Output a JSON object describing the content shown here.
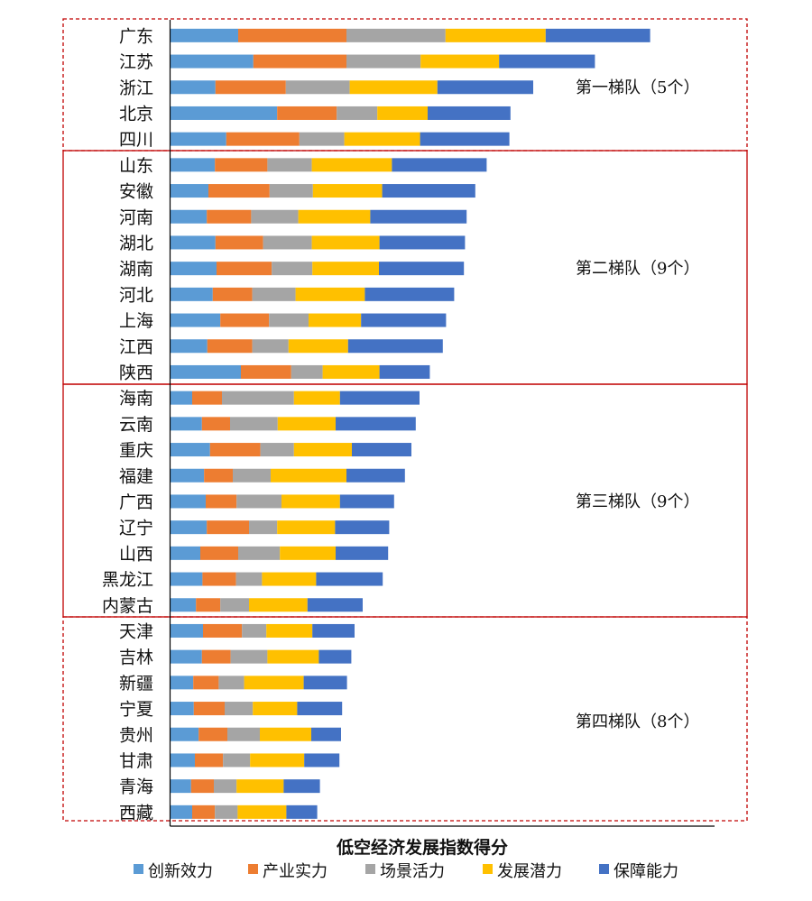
{
  "chart_data": {
    "type": "bar",
    "orientation": "horizontal",
    "stacked": true,
    "title": "",
    "xlabel": "低空经济发展指数得分",
    "ylabel": "",
    "xlim": [
      0,
      100
    ],
    "grid": false,
    "legend_position": "bottom",
    "categories": [
      "广东",
      "江苏",
      "浙江",
      "北京",
      "四川",
      "山东",
      "安徽",
      "河南",
      "湖北",
      "湖南",
      "河北",
      "上海",
      "江西",
      "陕西",
      "海南",
      "云南",
      "重庆",
      "福建",
      "广西",
      "辽宁",
      "山西",
      "黑龙江",
      "内蒙古",
      "天津",
      "吉林",
      "新疆",
      "宁夏",
      "贵州",
      "甘肃",
      "青海",
      "西藏"
    ],
    "series": [
      {
        "name": "创新效力",
        "color": "#5B9BD5",
        "values": [
          12.5,
          15.3,
          8.3,
          19.7,
          10.3,
          8.2,
          7.0,
          6.7,
          8.3,
          8.5,
          7.8,
          9.2,
          6.8,
          13.0,
          4.0,
          5.8,
          7.3,
          6.2,
          6.5,
          6.7,
          5.5,
          5.9,
          4.7,
          6.0,
          5.8,
          4.2,
          4.3,
          5.2,
          4.5,
          3.8,
          4.0
        ]
      },
      {
        "name": "产业实力",
        "color": "#ED7D31",
        "values": [
          20.0,
          17.2,
          13.0,
          11.0,
          13.5,
          9.7,
          11.3,
          8.2,
          8.8,
          10.2,
          7.3,
          9.0,
          8.3,
          9.3,
          5.5,
          5.2,
          9.3,
          5.3,
          5.7,
          7.8,
          7.0,
          6.2,
          4.5,
          7.2,
          5.3,
          4.7,
          5.7,
          5.3,
          5.2,
          4.2,
          4.2
        ]
      },
      {
        "name": "场景活力",
        "color": "#A5A5A5",
        "values": [
          18.3,
          13.7,
          11.8,
          7.5,
          8.3,
          8.2,
          8.0,
          8.7,
          9.0,
          7.5,
          8.0,
          7.3,
          6.7,
          5.8,
          13.3,
          8.8,
          6.2,
          7.0,
          8.3,
          5.2,
          7.7,
          4.8,
          5.3,
          4.5,
          6.8,
          4.7,
          5.2,
          6.0,
          5.0,
          4.2,
          4.2
        ]
      },
      {
        "name": "发展潜力",
        "color": "#FFC000",
        "values": [
          18.5,
          14.5,
          16.2,
          9.3,
          14.0,
          14.8,
          12.8,
          13.3,
          12.5,
          12.3,
          12.8,
          9.7,
          11.0,
          10.5,
          8.5,
          10.7,
          10.7,
          14.0,
          10.8,
          10.7,
          10.3,
          10.0,
          10.8,
          8.5,
          9.5,
          11.0,
          8.2,
          9.5,
          10.0,
          8.7,
          9.0
        ]
      },
      {
        "name": "保障能力",
        "color": "#4472C4",
        "values": [
          19.3,
          17.7,
          17.7,
          15.3,
          16.5,
          17.5,
          17.2,
          17.8,
          15.8,
          15.7,
          16.5,
          15.7,
          17.5,
          9.3,
          14.7,
          14.8,
          11.0,
          10.8,
          10.0,
          10.0,
          9.7,
          12.3,
          10.2,
          7.8,
          6.0,
          8.0,
          8.3,
          5.5,
          6.5,
          6.7,
          5.7
        ]
      }
    ],
    "tiers": [
      {
        "label": "第一梯队（5个）",
        "start": 0,
        "count": 5
      },
      {
        "label": "第二梯队（9个）",
        "start": 5,
        "count": 9
      },
      {
        "label": "第三梯队（9个）",
        "start": 14,
        "count": 9
      },
      {
        "label": "第四梯队（8个）",
        "start": 23,
        "count": 8
      }
    ],
    "tier_border_color": "#C00000"
  }
}
